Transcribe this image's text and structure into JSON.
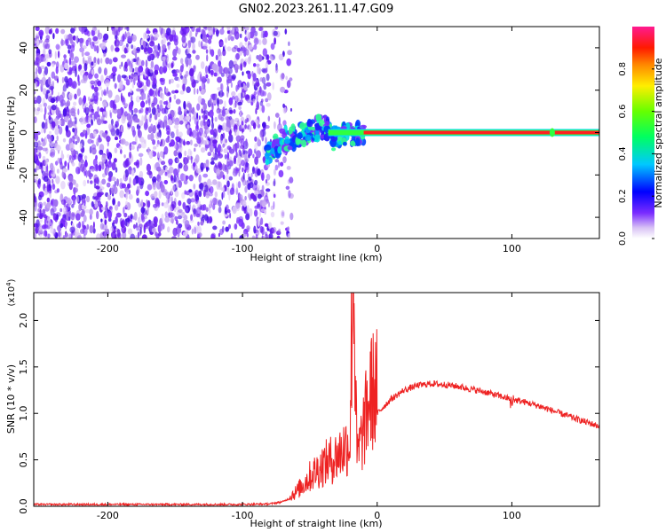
{
  "title": "GN02.2023.261.11.47.G09",
  "chart_data": [
    {
      "type": "heatmap",
      "xlabel": "Height of straight line (km)",
      "ylabel": "Frequency (Hz)",
      "xlim": [
        -255,
        165
      ],
      "ylim": [
        -50,
        50
      ],
      "x_ticks": [
        -200,
        -100,
        0,
        100
      ],
      "y_ticks": [
        -40,
        -20,
        0,
        20,
        40
      ],
      "colorbar": {
        "label": "Normalized spectral amplitude",
        "range": [
          0,
          1
        ],
        "ticks": [
          "0.0",
          "0.2",
          "0.4",
          "0.6",
          "0.8"
        ]
      },
      "noise_region_x": [
        -255,
        -80
      ],
      "signal_track": [
        {
          "x": -82,
          "y": -10
        },
        {
          "x": -75,
          "y": -6
        },
        {
          "x": -68,
          "y": -3
        },
        {
          "x": -60,
          "y": -2
        },
        {
          "x": -52,
          "y": 0
        },
        {
          "x": -45,
          "y": 2
        },
        {
          "x": -38,
          "y": 3
        },
        {
          "x": -33,
          "y": -3
        },
        {
          "x": -25,
          "y": -1
        },
        {
          "x": -15,
          "y": -1
        },
        {
          "x": -10,
          "y": 0
        },
        {
          "x": 165,
          "y": 0
        }
      ],
      "main_tone_hz": 0,
      "main_tone_x": [
        -10,
        165
      ]
    },
    {
      "type": "line",
      "xlabel": "Height of straight line (km)",
      "ylabel": "SNR (10 * v/v)",
      "y_scale_label": "(x10",
      "y_scale_exp": "4",
      "xlim": [
        -255,
        165
      ],
      "ylim": [
        0,
        23000
      ],
      "x_ticks": [
        -200,
        -100,
        0,
        100
      ],
      "y_ticks": [
        "0.0",
        "0.5",
        "1.0",
        "1.5",
        "2.0"
      ],
      "line_color": "#ee2222",
      "series": [
        {
          "x": [
            -255,
            -200,
            -150,
            -100,
            -80,
            -70,
            -60,
            -50,
            -40,
            -30,
            -20,
            -18,
            -15,
            -10,
            -5,
            0,
            10,
            20,
            30,
            40,
            50,
            60,
            70,
            80,
            90,
            100,
            110,
            120,
            130,
            140,
            150,
            165
          ],
          "values": [
            200,
            200,
            200,
            200,
            250,
            500,
            1200,
            2500,
            3500,
            4200,
            5500,
            23000,
            4000,
            6500,
            9500,
            10000,
            11500,
            12500,
            13000,
            13200,
            13100,
            12900,
            12600,
            12300,
            11900,
            11500,
            11200,
            10800,
            10300,
            9800,
            9300,
            8600
          ]
        }
      ]
    }
  ]
}
